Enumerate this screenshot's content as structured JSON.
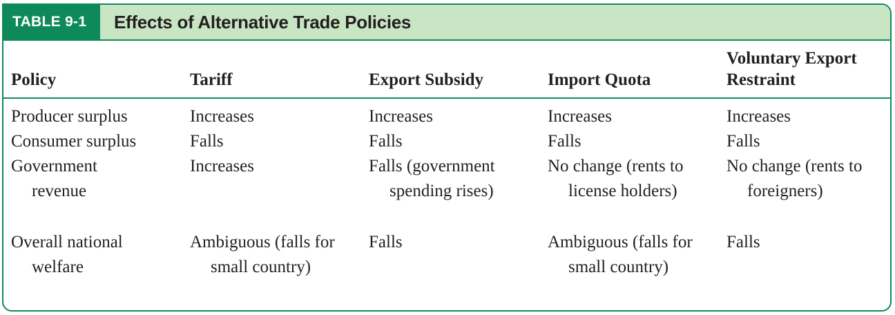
{
  "table": {
    "badge": "TABLE 9-1",
    "title": "Effects of Alternative Trade Policies",
    "headers": [
      "Policy",
      "Tariff",
      "Export Subsidy",
      "Import Quota",
      "Voluntary Export Restraint"
    ],
    "rows": [
      [
        "Producer surplus",
        "Increases",
        "Increases",
        "Increases",
        "Increases"
      ],
      [
        "Consumer surplus",
        "Falls",
        "Falls",
        "Falls",
        "Falls"
      ],
      [
        "Government revenue",
        "Increases",
        "Falls (government spending rises)",
        "No change (rents to license holders)",
        "No change (rents to foreigners)"
      ],
      [
        "Overall national welfare",
        "Ambiguous (falls for small country)",
        "Falls",
        "Ambiguous (falls for small country)",
        "Falls"
      ]
    ]
  },
  "colors": {
    "accent": "#0e8a5a",
    "title_bar": "#c9e6c4",
    "text": "#231f20"
  }
}
